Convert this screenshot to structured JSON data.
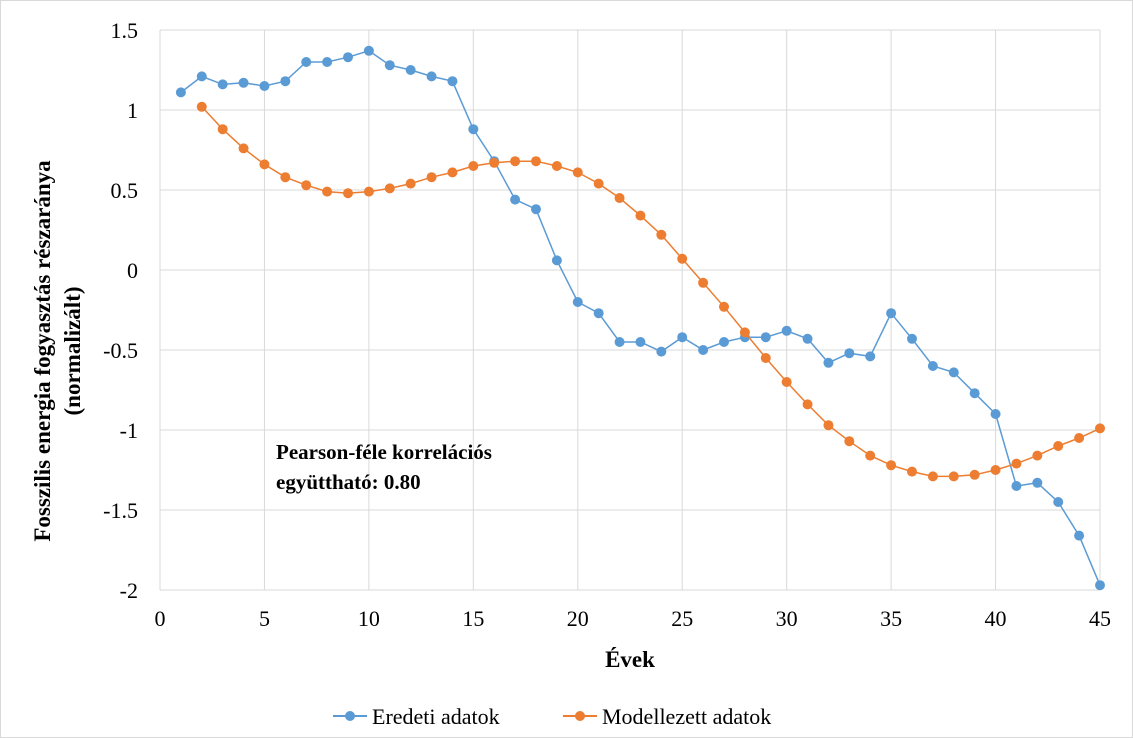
{
  "chart_data": {
    "type": "line",
    "title": "",
    "xlabel": "Évek",
    "ylabel_line1": "Fosszilis energia fogyasztás részaránya",
    "ylabel_line2": "(normalizált)",
    "xlim": [
      0,
      45
    ],
    "ylim": [
      -2,
      1.5
    ],
    "xticks": [
      0,
      5,
      10,
      15,
      20,
      25,
      30,
      35,
      40,
      45
    ],
    "yticks": [
      -2,
      -1.5,
      -1,
      -0.5,
      0,
      0.5,
      1,
      1.5
    ],
    "grid": true,
    "legend_position": "bottom",
    "annotation_lines": [
      "Pearson-féle korrelációs",
      "együttható: 0.80"
    ],
    "series": [
      {
        "name": "Eredeti adatok",
        "color": "#5b9bd5",
        "x": [
          1,
          2,
          3,
          4,
          5,
          6,
          7,
          8,
          9,
          10,
          11,
          12,
          13,
          14,
          15,
          16,
          17,
          18,
          19,
          20,
          21,
          22,
          23,
          24,
          25,
          26,
          27,
          28,
          29,
          30,
          31,
          32,
          33,
          34,
          35,
          36,
          37,
          38,
          39,
          40,
          41,
          42,
          43,
          44,
          45
        ],
        "values": [
          1.11,
          1.21,
          1.16,
          1.17,
          1.15,
          1.18,
          1.3,
          1.3,
          1.33,
          1.37,
          1.28,
          1.25,
          1.21,
          1.18,
          0.88,
          0.68,
          0.44,
          0.38,
          0.06,
          -0.2,
          -0.27,
          -0.45,
          -0.45,
          -0.51,
          -0.42,
          -0.5,
          -0.45,
          -0.42,
          -0.42,
          -0.38,
          -0.43,
          -0.58,
          -0.52,
          -0.54,
          -0.27,
          -0.43,
          -0.6,
          -0.64,
          -0.77,
          -0.9,
          -1.35,
          -1.33,
          -1.45,
          -1.66,
          -1.97
        ]
      },
      {
        "name": "Modellezett adatok",
        "color": "#ed7d31",
        "x": [
          2,
          3,
          4,
          5,
          6,
          7,
          8,
          9,
          10,
          11,
          12,
          13,
          14,
          15,
          16,
          17,
          18,
          19,
          20,
          21,
          22,
          23,
          24,
          25,
          26,
          27,
          28,
          29,
          30,
          31,
          32,
          33,
          34,
          35,
          36,
          37,
          38,
          39,
          40,
          41,
          42,
          43,
          44,
          45
        ],
        "values": [
          1.02,
          0.88,
          0.76,
          0.66,
          0.58,
          0.53,
          0.49,
          0.48,
          0.49,
          0.51,
          0.54,
          0.58,
          0.61,
          0.65,
          0.67,
          0.68,
          0.68,
          0.65,
          0.61,
          0.54,
          0.45,
          0.34,
          0.22,
          0.07,
          -0.08,
          -0.23,
          -0.39,
          -0.55,
          -0.7,
          -0.84,
          -0.97,
          -1.07,
          -1.16,
          -1.22,
          -1.26,
          -1.29,
          -1.29,
          -1.28,
          -1.25,
          -1.21,
          -1.16,
          -1.1,
          -1.05,
          -0.99
        ]
      }
    ]
  }
}
